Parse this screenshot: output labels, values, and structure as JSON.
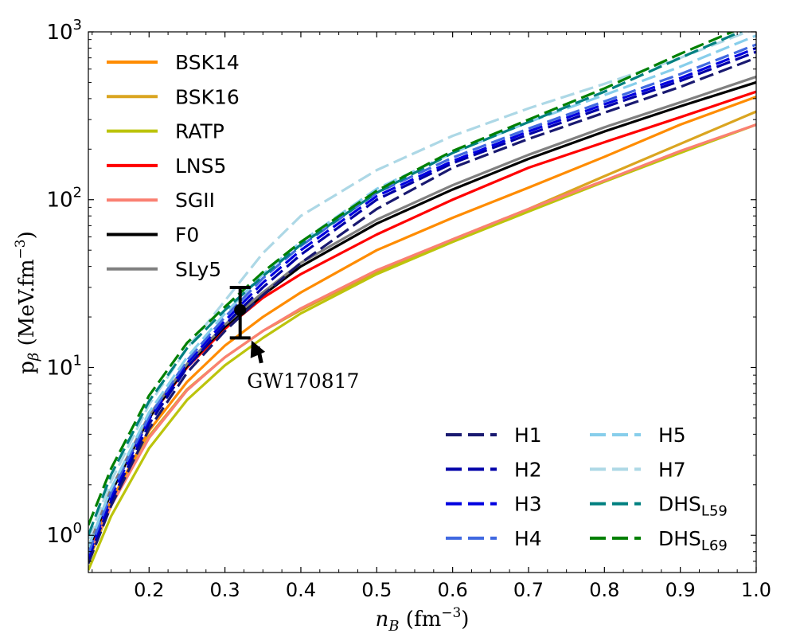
{
  "chart_data": {
    "type": "line",
    "title": "",
    "xlabel": {
      "main": "n",
      "sub": "B",
      "unit": " (fm",
      "exp": "−3",
      "close": ")"
    },
    "ylabel": {
      "main": "p",
      "sub": "β",
      "unit": " (MeV.fm",
      "exp": "−3",
      "close": ")"
    },
    "xlim": [
      0.12,
      1.0
    ],
    "ylim": [
      0.6,
      1000
    ],
    "yscale": "log",
    "x_ticks": [
      0.2,
      0.3,
      0.4,
      0.5,
      0.6,
      0.7,
      0.8,
      0.9,
      1.0
    ],
    "x_tick_labels": [
      "0.2",
      "0.3",
      "0.4",
      "0.5",
      "0.6",
      "0.7",
      "0.8",
      "0.9",
      "1.0"
    ],
    "y_ticks": [
      {
        "value": 1,
        "base": "10",
        "exp": "0"
      },
      {
        "value": 10,
        "base": "10",
        "exp": "1"
      },
      {
        "value": 100,
        "base": "10",
        "exp": "2"
      },
      {
        "value": 1000,
        "base": "10",
        "exp": "3"
      }
    ],
    "x": [
      0.12,
      0.15,
      0.2,
      0.25,
      0.3,
      0.35,
      0.4,
      0.5,
      0.6,
      0.7,
      0.8,
      0.9,
      1.0
    ],
    "series": [
      {
        "name": "BSK14",
        "color": "#ff8c00",
        "dash": "solid",
        "values": [
          0.8,
          1.6,
          4.2,
          8.2,
          13.5,
          20,
          28,
          50,
          78,
          118,
          180,
          280,
          410
        ]
      },
      {
        "name": "BSK16",
        "color": "#daa520",
        "dash": "solid",
        "values": [
          0.7,
          1.5,
          3.9,
          7.4,
          11.5,
          16.5,
          22,
          37,
          58,
          88,
          138,
          215,
          335
        ]
      },
      {
        "name": "RATP",
        "color": "#bcc40c",
        "dash": "solid",
        "values": [
          0.62,
          1.3,
          3.3,
          6.4,
          10.3,
          15,
          21,
          36,
          56,
          85,
          128,
          190,
          280
        ]
      },
      {
        "name": "LNS5",
        "color": "#ff0000",
        "dash": "solid",
        "values": [
          0.8,
          1.8,
          5,
          10,
          17,
          26,
          36,
          62,
          100,
          155,
          220,
          310,
          440
        ]
      },
      {
        "name": "SGII",
        "color": "#fa8072",
        "dash": "solid",
        "values": [
          0.75,
          1.5,
          3.8,
          7.3,
          11.5,
          16.5,
          22.5,
          38,
          58,
          88,
          130,
          195,
          280
        ]
      },
      {
        "name": "F0",
        "color": "#000000",
        "dash": "solid",
        "values": [
          0.82,
          1.8,
          5,
          10.2,
          17.5,
          27,
          40,
          72,
          115,
          175,
          255,
          360,
          500
        ]
      },
      {
        "name": "SLy5",
        "color": "#808080",
        "dash": "solid",
        "values": [
          0.85,
          1.9,
          5.2,
          10.5,
          18,
          28,
          42,
          76,
          122,
          185,
          270,
          380,
          540
        ]
      },
      {
        "name": "H1",
        "color": "#191970",
        "dash": "dashed",
        "values": [
          0.68,
          1.5,
          4.3,
          9.3,
          16.5,
          27,
          42,
          88,
          155,
          230,
          330,
          470,
          700
        ]
      },
      {
        "name": "H2",
        "color": "#0000a8",
        "dash": "dashed",
        "values": [
          0.72,
          1.6,
          4.6,
          10,
          18,
          30,
          47,
          100,
          165,
          245,
          355,
          510,
          760
        ]
      },
      {
        "name": "H3",
        "color": "#0000e0",
        "dash": "dashed",
        "values": [
          0.75,
          1.7,
          4.9,
          10.6,
          19,
          32,
          50,
          105,
          170,
          255,
          370,
          530,
          800
        ]
      },
      {
        "name": "H4",
        "color": "#4169e1",
        "dash": "dashed",
        "values": [
          0.78,
          1.8,
          5.1,
          11,
          20,
          34,
          53,
          110,
          178,
          265,
          385,
          560,
          840
        ]
      },
      {
        "name": "H5",
        "color": "#87ceeb",
        "dash": "dashed",
        "values": [
          0.85,
          1.9,
          5.4,
          11.5,
          21,
          36,
          56,
          116,
          190,
          290,
          420,
          620,
          950
        ]
      },
      {
        "name": "H7",
        "color": "#add8e6",
        "dash": "dashed",
        "values": [
          0.95,
          2.1,
          6,
          13,
          25,
          48,
          80,
          150,
          240,
          350,
          490,
          700,
          1050
        ]
      },
      {
        "name": "DHS_L59",
        "display": "DHS",
        "subscript": "L59",
        "color": "#008080",
        "dash": "dashed",
        "values": [
          1.0,
          2.3,
          6.3,
          13,
          22,
          35,
          54,
          110,
          190,
          290,
          440,
          700,
          1100
        ]
      },
      {
        "name": "DHS_L69",
        "display": "DHS",
        "subscript": "L69",
        "color": "#008000",
        "dash": "dashed",
        "values": [
          1.15,
          2.5,
          6.8,
          14,
          23,
          37,
          56,
          113,
          195,
          300,
          460,
          740,
          1150
        ]
      }
    ],
    "legends": [
      {
        "placement": "upper-left",
        "columns": 1,
        "entries": [
          "BSK14",
          "BSK16",
          "RATP",
          "LNS5",
          "SGII",
          "F0",
          "SLy5"
        ]
      },
      {
        "placement": "lower-right",
        "columns": 2,
        "entries": [
          "H1",
          "H2",
          "H3",
          "H4",
          "H5",
          "H7",
          "DHS_L59",
          "DHS_L69"
        ]
      }
    ],
    "annotation": {
      "label": "GW170817",
      "point": {
        "x": 0.32,
        "y": 22
      },
      "error": {
        "low": 15,
        "high": 30
      },
      "arrow_to": {
        "x": 0.335,
        "y": 14.5
      },
      "text_at": {
        "x": 0.35,
        "y": 8
      }
    }
  }
}
